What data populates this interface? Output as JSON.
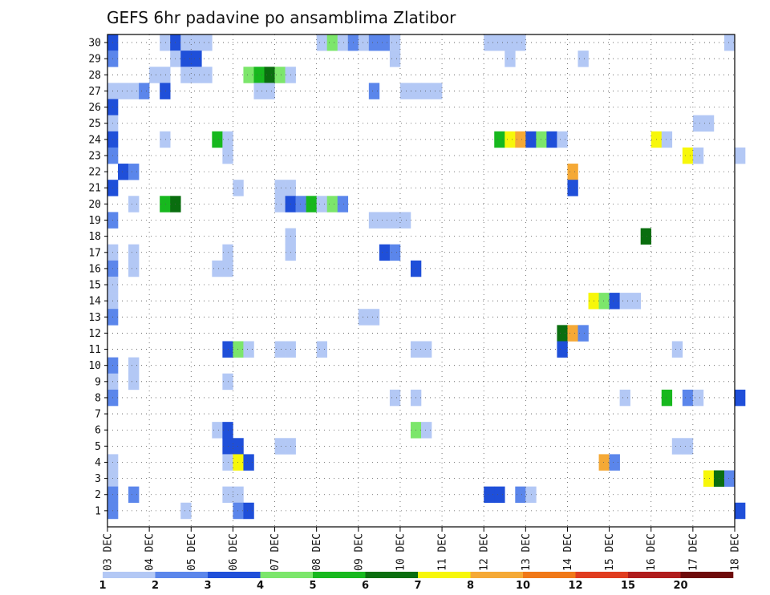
{
  "chart_data": {
    "type": "heatmap",
    "title": "GEFS 6hr padavine po ansamblima Zlatibor",
    "xlabel": "",
    "ylabel": "",
    "x_tick_labels": [
      "03 DEC",
      "04 DEC",
      "05 DEC",
      "06 DEC",
      "07 DEC",
      "08 DEC",
      "09 DEC",
      "10 DEC",
      "11 DEC",
      "12 DEC",
      "13 DEC",
      "14 DEC",
      "15 DEC",
      "16 DEC",
      "17 DEC",
      "18 DEC"
    ],
    "xlim": [
      0,
      15
    ],
    "time_step_days": 0.25,
    "y_tick_labels": [
      "1",
      "2",
      "3",
      "4",
      "5",
      "6",
      "7",
      "8",
      "9",
      "10",
      "11",
      "12",
      "13",
      "14",
      "15",
      "16",
      "17",
      "18",
      "19",
      "20",
      "21",
      "22",
      "23",
      "24",
      "25",
      "26",
      "27",
      "28",
      "29",
      "30"
    ],
    "ylim": [
      1,
      30
    ],
    "grid": true,
    "colorbar": {
      "labels": [
        "1",
        "2",
        "3",
        "4",
        "5",
        "6",
        "7",
        "8",
        "10",
        "12",
        "15",
        "20"
      ],
      "colors": [
        "#b3c8f5",
        "#5b86eb",
        "#1f4fd9",
        "#7ce66b",
        "#17b81e",
        "#0a6e0f",
        "#f7f70a",
        "#f5a936",
        "#f07818",
        "#e03c1f",
        "#b01c1c",
        "#6e0b0b"
      ]
    },
    "cells": [
      [
        0,
        30,
        3
      ],
      [
        5,
        30,
        1
      ],
      [
        6,
        30,
        3
      ],
      [
        7,
        30,
        1
      ],
      [
        8,
        30,
        1
      ],
      [
        9,
        30,
        1
      ],
      [
        20,
        30,
        1
      ],
      [
        21,
        30,
        4
      ],
      [
        22,
        30,
        1
      ],
      [
        23,
        30,
        2
      ],
      [
        24,
        30,
        1
      ],
      [
        25,
        30,
        2
      ],
      [
        26,
        30,
        2
      ],
      [
        27,
        30,
        1
      ],
      [
        36,
        30,
        1
      ],
      [
        37,
        30,
        1
      ],
      [
        38,
        30,
        1
      ],
      [
        39,
        30,
        1
      ],
      [
        59,
        30,
        1
      ],
      [
        0,
        29,
        2
      ],
      [
        6,
        29,
        1
      ],
      [
        7,
        29,
        3
      ],
      [
        8,
        29,
        3
      ],
      [
        27,
        29,
        1
      ],
      [
        38,
        29,
        1
      ],
      [
        45,
        29,
        1
      ],
      [
        4,
        28,
        1
      ],
      [
        5,
        28,
        1
      ],
      [
        7,
        28,
        1
      ],
      [
        8,
        28,
        1
      ],
      [
        9,
        28,
        1
      ],
      [
        13,
        28,
        4
      ],
      [
        14,
        28,
        5
      ],
      [
        15,
        28,
        6
      ],
      [
        16,
        28,
        4
      ],
      [
        17,
        28,
        1
      ],
      [
        0,
        27,
        1
      ],
      [
        1,
        27,
        1
      ],
      [
        2,
        27,
        1
      ],
      [
        3,
        27,
        2
      ],
      [
        5,
        27,
        3
      ],
      [
        14,
        27,
        1
      ],
      [
        15,
        27,
        1
      ],
      [
        25,
        27,
        2
      ],
      [
        28,
        27,
        1
      ],
      [
        29,
        27,
        1
      ],
      [
        30,
        27,
        1
      ],
      [
        31,
        27,
        1
      ],
      [
        0,
        26,
        3
      ],
      [
        0,
        25,
        1
      ],
      [
        56,
        25,
        1
      ],
      [
        57,
        25,
        1
      ],
      [
        0,
        24,
        3
      ],
      [
        5,
        24,
        1
      ],
      [
        10,
        24,
        5
      ],
      [
        11,
        24,
        1
      ],
      [
        37,
        24,
        5
      ],
      [
        38,
        24,
        7
      ],
      [
        39,
        24,
        8
      ],
      [
        40,
        24,
        3
      ],
      [
        41,
        24,
        4
      ],
      [
        42,
        24,
        3
      ],
      [
        43,
        24,
        1
      ],
      [
        52,
        24,
        7
      ],
      [
        53,
        24,
        1
      ],
      [
        0,
        23,
        2
      ],
      [
        11,
        23,
        1
      ],
      [
        55,
        23,
        7
      ],
      [
        56,
        23,
        1
      ],
      [
        60,
        23,
        1
      ],
      [
        1,
        22,
        3
      ],
      [
        2,
        22,
        2
      ],
      [
        44,
        22,
        8
      ],
      [
        0,
        21,
        3
      ],
      [
        12,
        21,
        1
      ],
      [
        16,
        21,
        1
      ],
      [
        17,
        21,
        1
      ],
      [
        44,
        21,
        3
      ],
      [
        2,
        20,
        1
      ],
      [
        5,
        20,
        5
      ],
      [
        6,
        20,
        6
      ],
      [
        16,
        20,
        1
      ],
      [
        17,
        20,
        3
      ],
      [
        18,
        20,
        2
      ],
      [
        19,
        20,
        5
      ],
      [
        20,
        20,
        1
      ],
      [
        21,
        20,
        4
      ],
      [
        22,
        20,
        2
      ],
      [
        0,
        19,
        2
      ],
      [
        25,
        19,
        1
      ],
      [
        26,
        19,
        1
      ],
      [
        27,
        19,
        1
      ],
      [
        28,
        19,
        1
      ],
      [
        17,
        18,
        1
      ],
      [
        51,
        18,
        6
      ],
      [
        11,
        17,
        1
      ],
      [
        11,
        16,
        1
      ],
      [
        0,
        17,
        1
      ],
      [
        2,
        17,
        1
      ],
      [
        2,
        16,
        1
      ],
      [
        0,
        16,
        2
      ],
      [
        17,
        17,
        1
      ],
      [
        26,
        17,
        3
      ],
      [
        27,
        17,
        2
      ],
      [
        10,
        16,
        1
      ],
      [
        29,
        16,
        3
      ],
      [
        0,
        15,
        1
      ],
      [
        0,
        14,
        1
      ],
      [
        46,
        14,
        7
      ],
      [
        47,
        14,
        4
      ],
      [
        48,
        14,
        3
      ],
      [
        49,
        14,
        1
      ],
      [
        50,
        14,
        1
      ],
      [
        0,
        13,
        2
      ],
      [
        24,
        13,
        1
      ],
      [
        25,
        13,
        1
      ],
      [
        43,
        12,
        6
      ],
      [
        44,
        12,
        8
      ],
      [
        45,
        12,
        2
      ],
      [
        11,
        11,
        3
      ],
      [
        12,
        11,
        4
      ],
      [
        13,
        11,
        1
      ],
      [
        16,
        11,
        1
      ],
      [
        17,
        11,
        1
      ],
      [
        20,
        11,
        1
      ],
      [
        29,
        11,
        1
      ],
      [
        30,
        11,
        1
      ],
      [
        43,
        11,
        3
      ],
      [
        54,
        11,
        1
      ],
      [
        0,
        10,
        2
      ],
      [
        2,
        10,
        1
      ],
      [
        0,
        9,
        1
      ],
      [
        2,
        9,
        1
      ],
      [
        11,
        9,
        1
      ],
      [
        0,
        8,
        2
      ],
      [
        27,
        8,
        1
      ],
      [
        29,
        8,
        1
      ],
      [
        49,
        8,
        1
      ],
      [
        53,
        8,
        5
      ],
      [
        55,
        8,
        2
      ],
      [
        56,
        8,
        1
      ],
      [
        60,
        8,
        3
      ],
      [
        10,
        6,
        1
      ],
      [
        11,
        6,
        3
      ],
      [
        29,
        6,
        4
      ],
      [
        30,
        6,
        1
      ],
      [
        11,
        5,
        3
      ],
      [
        12,
        5,
        3
      ],
      [
        16,
        5,
        1
      ],
      [
        17,
        5,
        1
      ],
      [
        54,
        5,
        1
      ],
      [
        55,
        5,
        1
      ],
      [
        0,
        4,
        1
      ],
      [
        11,
        4,
        1
      ],
      [
        12,
        4,
        7
      ],
      [
        13,
        4,
        3
      ],
      [
        47,
        4,
        8
      ],
      [
        48,
        4,
        2
      ],
      [
        0,
        3,
        1
      ],
      [
        57,
        3,
        7
      ],
      [
        58,
        3,
        6
      ],
      [
        59,
        3,
        2
      ],
      [
        0,
        2,
        2
      ],
      [
        2,
        2,
        2
      ],
      [
        11,
        2,
        1
      ],
      [
        12,
        2,
        1
      ],
      [
        36,
        2,
        3
      ],
      [
        37,
        2,
        3
      ],
      [
        39,
        2,
        2
      ],
      [
        40,
        2,
        1
      ],
      [
        0,
        1,
        2
      ],
      [
        7,
        1,
        1
      ],
      [
        12,
        1,
        2
      ],
      [
        13,
        1,
        3
      ],
      [
        60,
        1,
        3
      ]
    ]
  }
}
